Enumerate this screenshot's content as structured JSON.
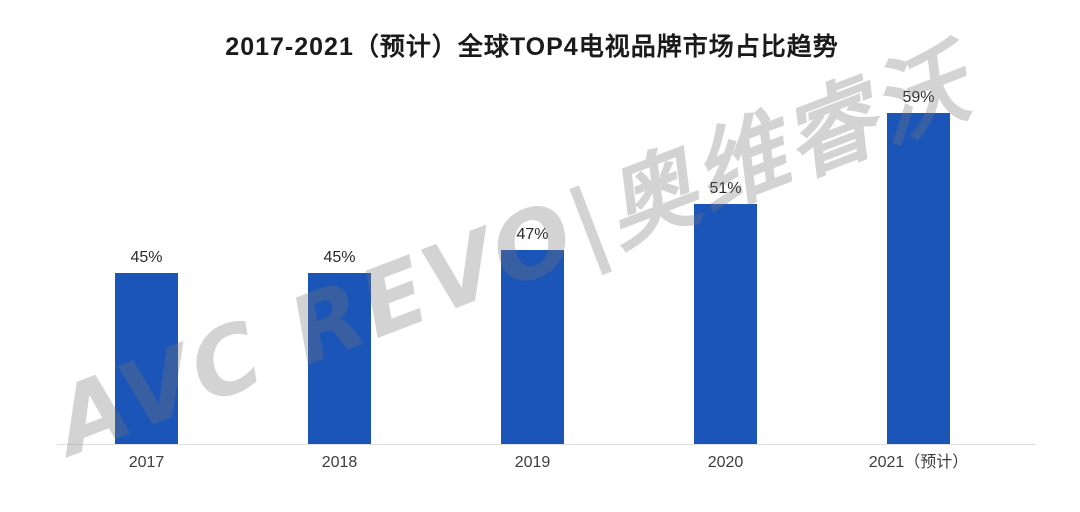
{
  "watermark": {
    "text": "AVC REVO|奥维睿沃",
    "color": "#d4d4d4"
  },
  "chart_data": {
    "type": "bar",
    "title": "2017-2021（预计）全球TOP4电视品牌市场占比趋势",
    "categories": [
      "2017",
      "2018",
      "2019",
      "2020",
      "2021（预计）"
    ],
    "values": [
      45,
      45,
      47,
      51,
      59
    ],
    "value_labels": [
      "45%",
      "45%",
      "47%",
      "51%",
      "59%"
    ],
    "unit": "%",
    "ylim": [
      30,
      62
    ],
    "y_axis_visible": false,
    "gridlines": false,
    "legend": false,
    "bar_color": "#1c55b8",
    "axis_line_color": "#e0e0e0",
    "title_color": "#1a1a1a",
    "value_label_color": "#2b2b2b",
    "x_label_color": "#3d3d3d"
  }
}
